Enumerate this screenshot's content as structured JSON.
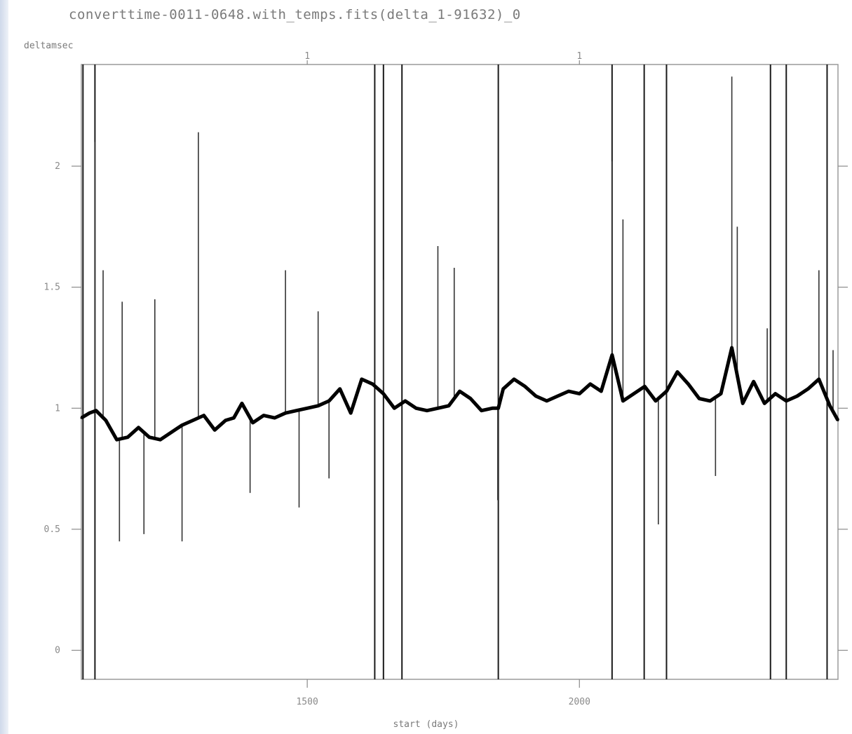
{
  "title": "converttime-0011-0648.with_temps.fits(delta_1-91632)_0",
  "chart_data": {
    "type": "line",
    "title": "converttime-0011-0648.with_temps.fits(delta_1-91632)_0",
    "xlabel": "start (days)",
    "ylabel": "deltamsec",
    "xlim": [
      1085,
      2475
    ],
    "ylim": [
      -0.12,
      2.42
    ],
    "x_ticks": [
      1500,
      2000
    ],
    "x_tick_labels": [
      "1500",
      "2000"
    ],
    "y_ticks": [
      0,
      0.5,
      1,
      1.5,
      2
    ],
    "y_tick_labels": [
      "0",
      "0.5",
      "1",
      "1.5",
      "2"
    ],
    "top_ticks": [
      1500,
      2000
    ],
    "top_tick_labels": [
      "1",
      "1"
    ],
    "grid": false,
    "vertical_lines": [
      1088,
      1110,
      1624,
      1640,
      1674,
      1851,
      2060,
      2119,
      2160,
      2351,
      2380,
      2455
    ],
    "series": [
      {
        "color": "#000000",
        "x": [
          1085,
          1100,
          1112,
          1130,
          1150,
          1170,
          1190,
          1210,
          1230,
          1250,
          1270,
          1290,
          1310,
          1330,
          1350,
          1365,
          1380,
          1400,
          1420,
          1440,
          1460,
          1480,
          1500,
          1520,
          1540,
          1560,
          1580,
          1600,
          1620,
          1640,
          1660,
          1680,
          1700,
          1720,
          1740,
          1760,
          1780,
          1800,
          1820,
          1840,
          1851,
          1860,
          1880,
          1900,
          1920,
          1940,
          1960,
          1980,
          2000,
          2020,
          2040,
          2060,
          2080,
          2100,
          2120,
          2140,
          2160,
          2180,
          2200,
          2220,
          2240,
          2260,
          2280,
          2300,
          2320,
          2340,
          2360,
          2380,
          2400,
          2420,
          2440,
          2460,
          2475
        ],
        "y": [
          0.96,
          0.98,
          0.99,
          0.95,
          0.87,
          0.88,
          0.92,
          0.88,
          0.87,
          0.9,
          0.93,
          0.95,
          0.97,
          0.91,
          0.95,
          0.96,
          1.02,
          0.94,
          0.97,
          0.96,
          0.98,
          0.99,
          1.0,
          1.01,
          1.03,
          1.08,
          0.98,
          1.12,
          1.1,
          1.06,
          1.0,
          1.03,
          1.0,
          0.99,
          1.0,
          1.01,
          1.07,
          1.04,
          0.99,
          1.0,
          1.0,
          1.08,
          1.12,
          1.09,
          1.05,
          1.03,
          1.05,
          1.07,
          1.06,
          1.1,
          1.07,
          1.22,
          1.03,
          1.06,
          1.09,
          1.03,
          1.07,
          1.15,
          1.1,
          1.04,
          1.03,
          1.06,
          1.25,
          1.02,
          1.11,
          1.02,
          1.06,
          1.03,
          1.05,
          1.08,
          1.12,
          1.01,
          0.95
        ],
        "spikes": [
          [
            1110,
            2.1
          ],
          [
            1125,
            1.57
          ],
          [
            1155,
            0.45
          ],
          [
            1160,
            1.44
          ],
          [
            1200,
            0.48
          ],
          [
            1220,
            1.45
          ],
          [
            1270,
            0.45
          ],
          [
            1300,
            2.14
          ],
          [
            1395,
            0.65
          ],
          [
            1460,
            1.57
          ],
          [
            1485,
            0.59
          ],
          [
            1520,
            1.4
          ],
          [
            1540,
            0.71
          ],
          [
            1640,
            1.53
          ],
          [
            1740,
            1.67
          ],
          [
            1770,
            1.58
          ],
          [
            1850,
            0.62
          ],
          [
            2060,
            2.02
          ],
          [
            2080,
            1.78
          ],
          [
            2145,
            0.52
          ],
          [
            2250,
            0.72
          ],
          [
            2280,
            2.37
          ],
          [
            2290,
            1.75
          ],
          [
            2345,
            1.33
          ],
          [
            2440,
            1.57
          ],
          [
            2466,
            1.24
          ]
        ]
      }
    ]
  }
}
